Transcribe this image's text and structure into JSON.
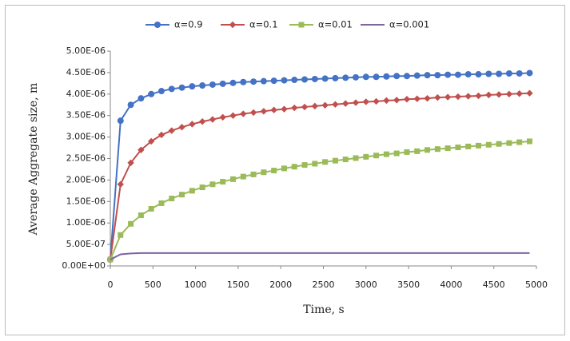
{
  "chart_data": {
    "type": "line",
    "xlabel": "Time, s",
    "ylabel": "Average Aggregate size, m",
    "x": [
      0,
      120,
      240,
      360,
      480,
      600,
      720,
      840,
      960,
      1080,
      1200,
      1320,
      1440,
      1560,
      1680,
      1800,
      1920,
      2040,
      2160,
      2280,
      2400,
      2520,
      2640,
      2760,
      2880,
      3000,
      3120,
      3240,
      3360,
      3480,
      3600,
      3720,
      3840,
      3960,
      4080,
      4200,
      4320,
      4440,
      4560,
      4680,
      4800,
      4920
    ],
    "series": [
      {
        "name": "α=0.9",
        "color": "#4472c4",
        "marker": "circle",
        "values": [
          1.5e-07,
          3.38e-06,
          3.75e-06,
          3.9e-06,
          4e-06,
          4.07e-06,
          4.12e-06,
          4.15e-06,
          4.18e-06,
          4.2e-06,
          4.22e-06,
          4.24e-06,
          4.26e-06,
          4.28e-06,
          4.29e-06,
          4.3e-06,
          4.31e-06,
          4.32e-06,
          4.33e-06,
          4.34e-06,
          4.35e-06,
          4.36e-06,
          4.37e-06,
          4.38e-06,
          4.39e-06,
          4.4e-06,
          4.4e-06,
          4.41e-06,
          4.42e-06,
          4.42e-06,
          4.43e-06,
          4.44e-06,
          4.44e-06,
          4.45e-06,
          4.45e-06,
          4.46e-06,
          4.46e-06,
          4.47e-06,
          4.47e-06,
          4.48e-06,
          4.48e-06,
          4.49e-06
        ]
      },
      {
        "name": "α=0.1",
        "color": "#c0504d",
        "marker": "diamond",
        "values": [
          1.5e-07,
          1.9e-06,
          2.4e-06,
          2.7e-06,
          2.9e-06,
          3.05e-06,
          3.15e-06,
          3.23e-06,
          3.3e-06,
          3.36e-06,
          3.41e-06,
          3.46e-06,
          3.5e-06,
          3.54e-06,
          3.57e-06,
          3.6e-06,
          3.63e-06,
          3.65e-06,
          3.68e-06,
          3.7e-06,
          3.72e-06,
          3.74e-06,
          3.76e-06,
          3.78e-06,
          3.8e-06,
          3.82e-06,
          3.83e-06,
          3.85e-06,
          3.86e-06,
          3.88e-06,
          3.89e-06,
          3.9e-06,
          3.92e-06,
          3.93e-06,
          3.94e-06,
          3.95e-06,
          3.96e-06,
          3.98e-06,
          3.99e-06,
          4e-06,
          4.01e-06,
          4.02e-06
        ]
      },
      {
        "name": "α=0.01",
        "color": "#9bbb59",
        "marker": "square",
        "values": [
          1.5e-07,
          7.2e-07,
          9.8e-07,
          1.18e-06,
          1.33e-06,
          1.46e-06,
          1.57e-06,
          1.66e-06,
          1.75e-06,
          1.83e-06,
          1.9e-06,
          1.96e-06,
          2.02e-06,
          2.08e-06,
          2.13e-06,
          2.18e-06,
          2.22e-06,
          2.27e-06,
          2.31e-06,
          2.35e-06,
          2.38e-06,
          2.42e-06,
          2.45e-06,
          2.48e-06,
          2.51e-06,
          2.54e-06,
          2.57e-06,
          2.6e-06,
          2.62e-06,
          2.65e-06,
          2.67e-06,
          2.7e-06,
          2.72e-06,
          2.74e-06,
          2.76e-06,
          2.78e-06,
          2.8e-06,
          2.82e-06,
          2.84e-06,
          2.86e-06,
          2.88e-06,
          2.9e-06
        ]
      },
      {
        "name": "α=0.001",
        "color": "#8064a2",
        "marker": "none",
        "values": [
          1.5e-07,
          2.7e-07,
          2.9e-07,
          3e-07,
          3e-07,
          3e-07,
          3e-07,
          3e-07,
          3e-07,
          3e-07,
          3e-07,
          3e-07,
          3e-07,
          3e-07,
          3e-07,
          3e-07,
          3e-07,
          3e-07,
          3e-07,
          3e-07,
          3e-07,
          3e-07,
          3e-07,
          3e-07,
          3e-07,
          3e-07,
          3e-07,
          3e-07,
          3e-07,
          3e-07,
          3e-07,
          3e-07,
          3e-07,
          3e-07,
          3e-07,
          3e-07,
          3e-07,
          3e-07,
          3e-07,
          3e-07,
          3e-07,
          3e-07
        ]
      }
    ],
    "xlim": [
      0,
      5000
    ],
    "xticks": [
      0,
      500,
      1000,
      1500,
      2000,
      2500,
      3000,
      3500,
      4000,
      4500,
      5000
    ],
    "ylim": [
      0,
      5e-06
    ],
    "yticks": [
      {
        "value": 0,
        "label": "0.00E+00"
      },
      {
        "value": 5e-07,
        "label": "5.00E-07"
      },
      {
        "value": 1e-06,
        "label": "1.00E-06"
      },
      {
        "value": 1.5e-06,
        "label": "1.50E-06"
      },
      {
        "value": 2e-06,
        "label": "2.00E-06"
      },
      {
        "value": 2.5e-06,
        "label": "2.50E-06"
      },
      {
        "value": 3e-06,
        "label": "3.00E-06"
      },
      {
        "value": 3.5e-06,
        "label": "3.50E-06"
      },
      {
        "value": 4e-06,
        "label": "4.00E-06"
      },
      {
        "value": 4.5e-06,
        "label": "4.50E-06"
      },
      {
        "value": 5e-06,
        "label": "5.00E-06"
      }
    ],
    "legend": "top",
    "grid": false
  }
}
